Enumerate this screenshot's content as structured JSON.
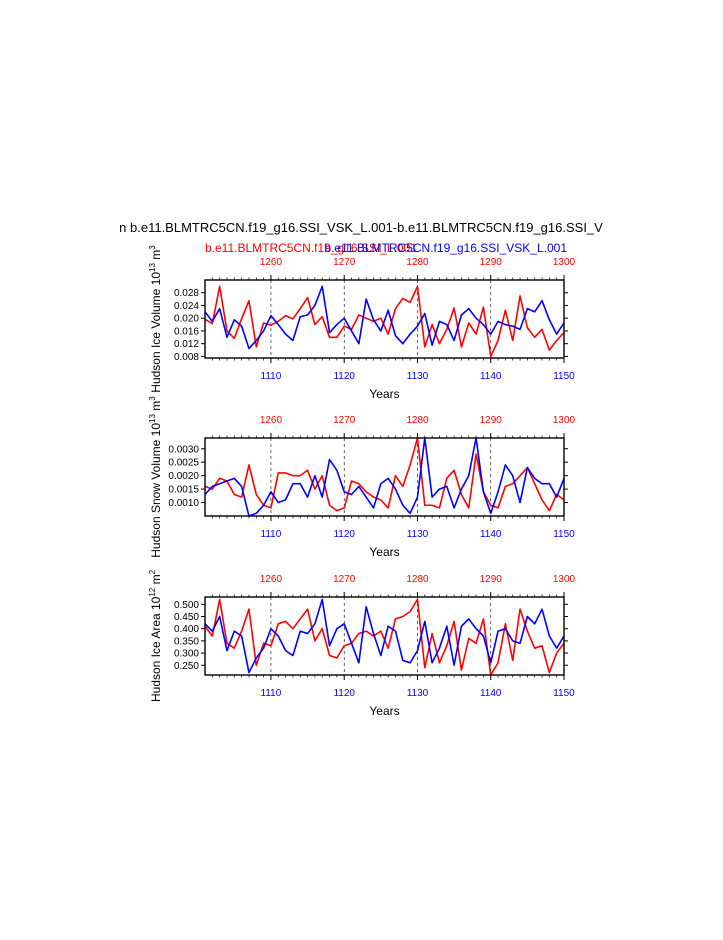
{
  "header": {
    "main_title": "n b.e11.BLMTRC5CN.f19_g16.SSI_VSK_L.001-b.e11.BLMTRC5CN.f19_g16.SSI_V",
    "legend_red": "b.e11.BLMTRC5CN.f19_g16.SSI_L.001",
    "legend_blue": "b.e11.BLMTRC5CN.f19_g16.SSI_VSK_L.001"
  },
  "colors": {
    "red": "#ff0000",
    "blue": "#0000ff",
    "axis": "#000000"
  },
  "chart_data": [
    {
      "type": "line",
      "ylabel": "Hudson Ice Volume 10",
      "ylabel_exp": "13",
      "ylabel_unit": "m",
      "ylabel_unit_exp": "3",
      "xlabel": "Years",
      "ylim": [
        0.0075,
        0.032
      ],
      "yticks": [
        "0.008",
        "0.012",
        "0.016",
        "0.020",
        "0.024",
        "0.028"
      ],
      "ytick_values": [
        0.008,
        0.012,
        0.016,
        0.02,
        0.024,
        0.028
      ],
      "bottom_axis": {
        "range": [
          1101,
          1150
        ],
        "ticks": [
          "1110",
          "1120",
          "1130",
          "1140",
          "1150"
        ],
        "tick_values": [
          1110,
          1120,
          1130,
          1140,
          1150
        ]
      },
      "top_axis": {
        "range": [
          1251,
          1300
        ],
        "ticks": [
          "1260",
          "1270",
          "1280",
          "1290",
          "1300"
        ],
        "tick_values": [
          1260,
          1270,
          1280,
          1290,
          1300
        ]
      },
      "series": [
        {
          "color": "red",
          "values": [
            0.0197,
            0.0183,
            0.03,
            0.016,
            0.0137,
            0.0198,
            0.0255,
            0.011,
            0.0185,
            0.0178,
            0.019,
            0.0208,
            0.0198,
            0.023,
            0.0265,
            0.018,
            0.0205,
            0.014,
            0.014,
            0.0175,
            0.0165,
            0.021,
            0.02,
            0.019,
            0.02,
            0.015,
            0.023,
            0.0262,
            0.025,
            0.03,
            0.011,
            0.018,
            0.012,
            0.0165,
            0.0232,
            0.011,
            0.0185,
            0.015,
            0.0235,
            0.008,
            0.013,
            0.0225,
            0.013,
            0.027,
            0.017,
            0.014,
            0.0165,
            0.01,
            0.013,
            0.0155
          ]
        },
        {
          "color": "blue",
          "values": [
            0.022,
            0.019,
            0.023,
            0.014,
            0.0195,
            0.0175,
            0.0105,
            0.013,
            0.016,
            0.0208,
            0.018,
            0.015,
            0.013,
            0.0205,
            0.021,
            0.024,
            0.03,
            0.0155,
            0.018,
            0.02,
            0.016,
            0.012,
            0.026,
            0.0195,
            0.016,
            0.0225,
            0.0145,
            0.012,
            0.015,
            0.0175,
            0.0215,
            0.0115,
            0.019,
            0.018,
            0.013,
            0.021,
            0.023,
            0.02,
            0.018,
            0.015,
            0.019,
            0.018,
            0.0175,
            0.0165,
            0.023,
            0.022,
            0.0255,
            0.0195,
            0.015,
            0.0185
          ]
        }
      ]
    },
    {
      "type": "line",
      "ylabel": "Hudson Snow Volume 10",
      "ylabel_exp": "13",
      "ylabel_unit": "m",
      "ylabel_unit_exp": "3",
      "xlabel": "Years",
      "ylim": [
        0.0005,
        0.0034
      ],
      "yticks": [
        "0.0010",
        "0.0015",
        "0.0020",
        "0.0025",
        "0.0030"
      ],
      "ytick_values": [
        0.001,
        0.0015,
        0.002,
        0.0025,
        0.003
      ],
      "bottom_axis": {
        "range": [
          1101,
          1150
        ],
        "ticks": [
          "1110",
          "1120",
          "1130",
          "1140",
          "1150"
        ],
        "tick_values": [
          1110,
          1120,
          1130,
          1140,
          1150
        ]
      },
      "top_axis": {
        "range": [
          1251,
          1300
        ],
        "ticks": [
          "1260",
          "1270",
          "1280",
          "1290",
          "1300"
        ],
        "tick_values": [
          1260,
          1270,
          1280,
          1290,
          1300
        ]
      },
      "series": [
        {
          "color": "red",
          "values": [
            0.0016,
            0.0015,
            0.0019,
            0.0018,
            0.0013,
            0.0012,
            0.0024,
            0.0013,
            0.0009,
            0.0008,
            0.0021,
            0.0021,
            0.002,
            0.002,
            0.0022,
            0.0015,
            0.002,
            0.0009,
            0.0007,
            0.0008,
            0.0018,
            0.0017,
            0.0014,
            0.0012,
            0.0011,
            0.0008,
            0.002,
            0.0016,
            0.0024,
            0.0034,
            0.0009,
            0.0009,
            0.0008,
            0.0019,
            0.0022,
            0.0013,
            0.0008,
            0.0028,
            0.0014,
            0.0009,
            0.0008,
            0.0016,
            0.0017,
            0.002,
            0.0023,
            0.0017,
            0.0011,
            0.0007,
            0.0013,
            0.0011
          ]
        },
        {
          "color": "blue",
          "values": [
            0.0013,
            0.0016,
            0.0017,
            0.0018,
            0.0019,
            0.0016,
            0.0005,
            0.0006,
            0.0009,
            0.0014,
            0.001,
            0.0011,
            0.0017,
            0.0017,
            0.0012,
            0.002,
            0.0012,
            0.0026,
            0.0022,
            0.0014,
            0.0013,
            0.0016,
            0.0012,
            0.0008,
            0.0017,
            0.0019,
            0.0015,
            0.0009,
            0.0006,
            0.0012,
            0.0034,
            0.0012,
            0.0015,
            0.0016,
            0.0008,
            0.0015,
            0.002,
            0.0034,
            0.0014,
            0.0006,
            0.0014,
            0.0024,
            0.002,
            0.001,
            0.0023,
            0.0019,
            0.0017,
            0.0017,
            0.0012,
            0.0019
          ]
        }
      ]
    },
    {
      "type": "line",
      "ylabel": "Hudson Ice Area 10",
      "ylabel_exp": "12",
      "ylabel_unit": "m",
      "ylabel_unit_exp": "2",
      "xlabel": "Years",
      "ylim": [
        0.21,
        0.53
      ],
      "yticks": [
        "0.250",
        "0.300",
        "0.350",
        "0.400",
        "0.450",
        "0.500"
      ],
      "ytick_values": [
        0.25,
        0.3,
        0.35,
        0.4,
        0.45,
        0.5
      ],
      "bottom_axis": {
        "range": [
          1101,
          1150
        ],
        "ticks": [
          "1110",
          "1120",
          "1130",
          "1140",
          "1150"
        ],
        "tick_values": [
          1110,
          1120,
          1130,
          1140,
          1150
        ]
      },
      "top_axis": {
        "range": [
          1251,
          1300
        ],
        "ticks": [
          "1260",
          "1270",
          "1280",
          "1290",
          "1300"
        ],
        "tick_values": [
          1260,
          1270,
          1280,
          1290,
          1300
        ]
      },
      "series": [
        {
          "color": "red",
          "values": [
            0.41,
            0.37,
            0.52,
            0.34,
            0.32,
            0.39,
            0.48,
            0.25,
            0.34,
            0.33,
            0.42,
            0.43,
            0.4,
            0.44,
            0.48,
            0.35,
            0.4,
            0.29,
            0.28,
            0.33,
            0.34,
            0.38,
            0.39,
            0.37,
            0.39,
            0.32,
            0.44,
            0.45,
            0.47,
            0.52,
            0.24,
            0.38,
            0.26,
            0.33,
            0.43,
            0.23,
            0.36,
            0.34,
            0.44,
            0.21,
            0.26,
            0.42,
            0.27,
            0.48,
            0.39,
            0.32,
            0.33,
            0.22,
            0.3,
            0.34
          ]
        },
        {
          "color": "blue",
          "values": [
            0.42,
            0.39,
            0.45,
            0.31,
            0.39,
            0.37,
            0.22,
            0.28,
            0.32,
            0.4,
            0.37,
            0.31,
            0.29,
            0.39,
            0.38,
            0.42,
            0.52,
            0.33,
            0.4,
            0.42,
            0.34,
            0.26,
            0.49,
            0.38,
            0.29,
            0.41,
            0.39,
            0.27,
            0.26,
            0.31,
            0.43,
            0.26,
            0.32,
            0.41,
            0.25,
            0.41,
            0.44,
            0.4,
            0.37,
            0.26,
            0.39,
            0.4,
            0.35,
            0.34,
            0.45,
            0.42,
            0.48,
            0.37,
            0.32,
            0.37
          ]
        }
      ]
    }
  ]
}
